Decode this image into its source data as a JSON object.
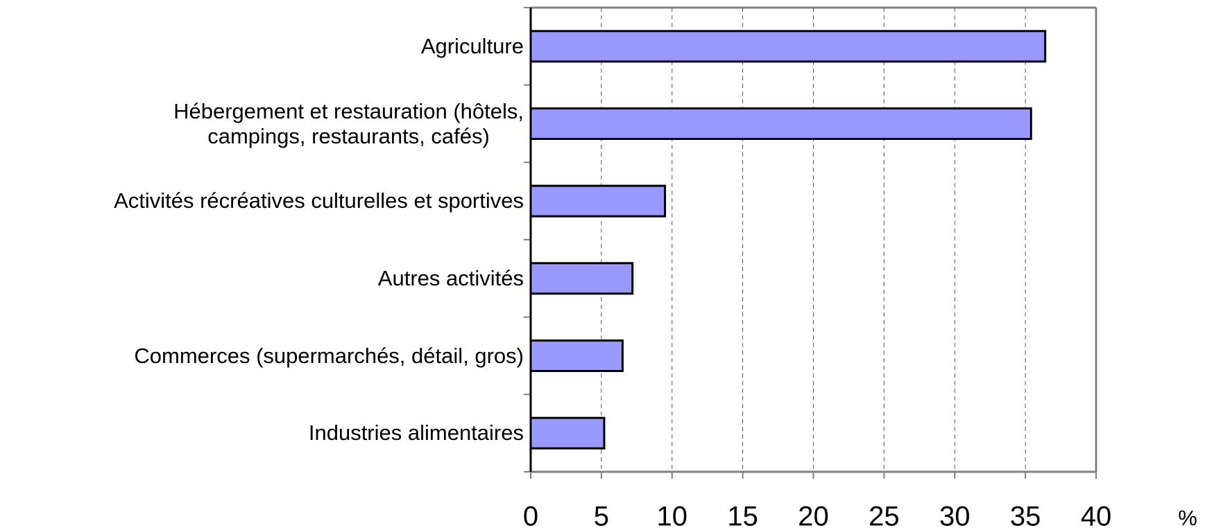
{
  "chart_data": {
    "type": "bar",
    "orientation": "horizontal",
    "categories": [
      "Agriculture",
      "Hébergement et restauration (hôtels,\ncampings, restaurants, cafés)",
      "Activités récréatives culturelles et sportives",
      "Autres activités",
      "Commerces (supermarchés, détail, gros)",
      "Industries alimentaires"
    ],
    "values": [
      36.4,
      35.4,
      9.5,
      7.2,
      6.5,
      5.2
    ],
    "color": "#9999ff",
    "xlim": [
      0,
      40
    ],
    "xticks": [
      0,
      5,
      10,
      15,
      20,
      25,
      30,
      35,
      40
    ],
    "xlabel": "%",
    "grid": true
  }
}
